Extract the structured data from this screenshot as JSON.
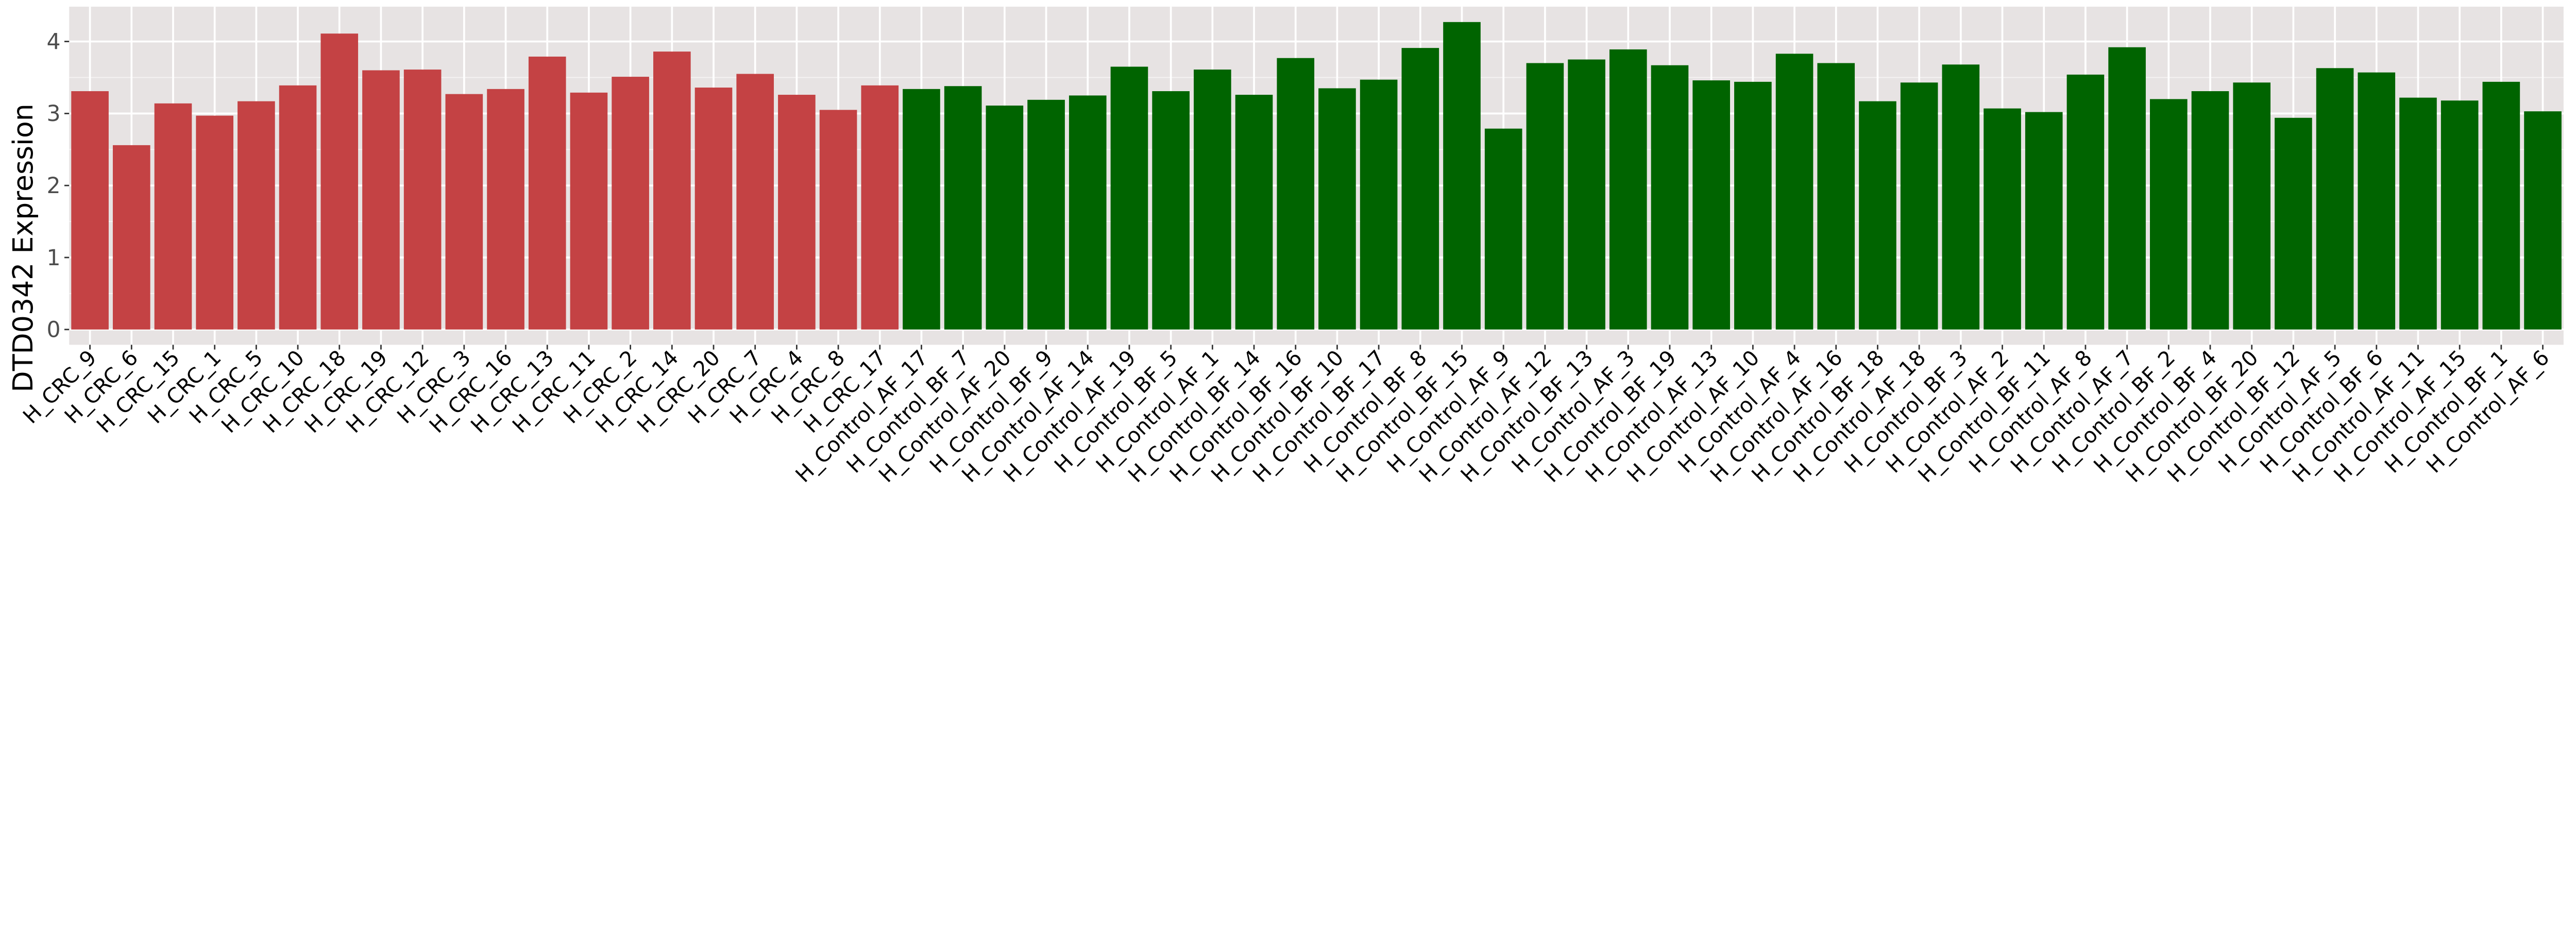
{
  "chart_data": {
    "type": "bar",
    "title": "",
    "xlabel": "",
    "ylabel": "DTD0342 Expression",
    "ylim": [
      -0.22,
      4.5
    ],
    "yticks": [
      0,
      1,
      2,
      3,
      4
    ],
    "grid": true,
    "colors": {
      "CRC": "#C44244",
      "Control": "#006400",
      "panel": "#E7E3E3",
      "grid": "#F5F3F3"
    },
    "categories": [
      "H_CRC_9",
      "H_CRC_6",
      "H_CRC_15",
      "H_CRC_1",
      "H_CRC_5",
      "H_CRC_10",
      "H_CRC_18",
      "H_CRC_19",
      "H_CRC_12",
      "H_CRC_3",
      "H_CRC_16",
      "H_CRC_13",
      "H_CRC_11",
      "H_CRC_2",
      "H_CRC_14",
      "H_CRC_20",
      "H_CRC_7",
      "H_CRC_4",
      "H_CRC_8",
      "H_CRC_17",
      "H_Control_AF_17",
      "H_Control_BF_7",
      "H_Control_AF_20",
      "H_Control_BF_9",
      "H_Control_AF_14",
      "H_Control_AF_19",
      "H_Control_BF_5",
      "H_Control_AF_1",
      "H_Control_BF_14",
      "H_Control_BF_16",
      "H_Control_BF_10",
      "H_Control_BF_17",
      "H_Control_BF_8",
      "H_Control_BF_15",
      "H_Control_AF_9",
      "H_Control_AF_12",
      "H_Control_BF_13",
      "H_Control_AF_3",
      "H_Control_BF_19",
      "H_Control_AF_13",
      "H_Control_AF_10",
      "H_Control_AF_4",
      "H_Control_AF_16",
      "H_Control_BF_18",
      "H_Control_AF_18",
      "H_Control_BF_3",
      "H_Control_AF_2",
      "H_Control_BF_11",
      "H_Control_AF_8",
      "H_Control_AF_7",
      "H_Control_BF_2",
      "H_Control_BF_4",
      "H_Control_BF_20",
      "H_Control_BF_12",
      "H_Control_AF_5",
      "H_Control_BF_6",
      "H_Control_AF_11",
      "H_Control_AF_15",
      "H_Control_BF_1",
      "H_Control_AF_6"
    ],
    "values": [
      3.31,
      2.56,
      3.14,
      2.97,
      3.17,
      3.39,
      4.11,
      3.6,
      3.61,
      3.27,
      3.34,
      3.79,
      3.29,
      3.51,
      3.86,
      3.36,
      3.55,
      3.26,
      3.05,
      3.39,
      3.34,
      3.38,
      3.11,
      3.19,
      3.25,
      3.65,
      3.31,
      3.61,
      3.26,
      3.77,
      3.35,
      3.47,
      3.91,
      4.27,
      2.79,
      3.7,
      3.75,
      3.89,
      3.67,
      3.46,
      3.44,
      3.83,
      3.7,
      3.17,
      3.43,
      3.68,
      3.07,
      3.02,
      3.54,
      3.92,
      3.2,
      3.31,
      3.43,
      2.94,
      3.63,
      3.57,
      3.22,
      3.18,
      3.44,
      3.03
    ],
    "groups": [
      "CRC",
      "CRC",
      "CRC",
      "CRC",
      "CRC",
      "CRC",
      "CRC",
      "CRC",
      "CRC",
      "CRC",
      "CRC",
      "CRC",
      "CRC",
      "CRC",
      "CRC",
      "CRC",
      "CRC",
      "CRC",
      "CRC",
      "CRC",
      "Control",
      "Control",
      "Control",
      "Control",
      "Control",
      "Control",
      "Control",
      "Control",
      "Control",
      "Control",
      "Control",
      "Control",
      "Control",
      "Control",
      "Control",
      "Control",
      "Control",
      "Control",
      "Control",
      "Control",
      "Control",
      "Control",
      "Control",
      "Control",
      "Control",
      "Control",
      "Control",
      "Control",
      "Control",
      "Control",
      "Control",
      "Control",
      "Control",
      "Control",
      "Control",
      "Control",
      "Control",
      "Control",
      "Control",
      "Control"
    ]
  }
}
